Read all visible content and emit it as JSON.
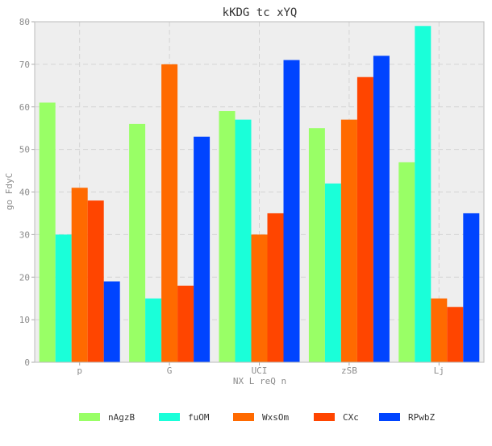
{
  "chart_data": {
    "type": "bar",
    "title": "kKDG tc xYQ",
    "xlabel": "NX L reQ n",
    "ylabel": "go FdyC",
    "categories": [
      "p",
      "G",
      "UCI",
      "zSB",
      "Lj"
    ],
    "ylim": [
      0,
      80
    ],
    "yticks": [
      0,
      10,
      20,
      30,
      40,
      50,
      60,
      70,
      80
    ],
    "grid": true,
    "legend_position": "bottom",
    "background": "#eeeeee",
    "series": [
      {
        "name": "nAgzB",
        "color": "#99ff66",
        "values": [
          61,
          56,
          59,
          55,
          47
        ]
      },
      {
        "name": "fuOM",
        "color": "#1affd9",
        "values": [
          30,
          15,
          57,
          42,
          79
        ]
      },
      {
        "name": "WxsOm",
        "color": "#ff6a00",
        "values": [
          41,
          70,
          30,
          57,
          15
        ]
      },
      {
        "name": "CXc",
        "color": "#ff4500",
        "values": [
          38,
          18,
          35,
          67,
          13
        ]
      },
      {
        "name": "RPwbZ",
        "color": "#0044ff",
        "values": [
          19,
          53,
          71,
          72,
          35
        ]
      }
    ]
  }
}
